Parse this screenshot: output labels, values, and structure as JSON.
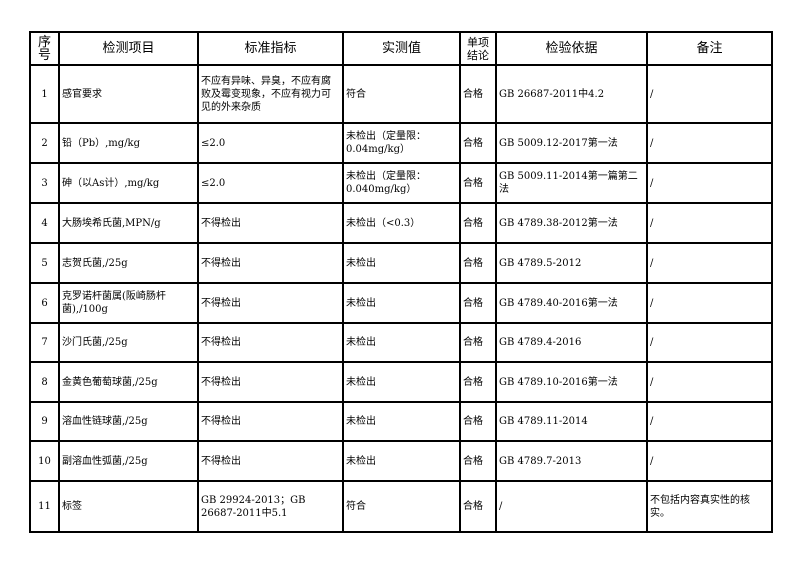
{
  "headers": [
    "序号",
    "检测项目",
    "标准指标",
    "实测值",
    "单项结论",
    "检验依据",
    "备注"
  ],
  "rows": [
    {
      "no": "1",
      "item": "感官要求",
      "standard": "不应有异味、异臭，不应有腐败及霉变现象，不应有视力可见的外来杂质",
      "result": "符合",
      "conclusion": "合格",
      "basis": "GB 26687-2011中4.2",
      "note": "/"
    },
    {
      "no": "2",
      "item": "铅（Pb）,mg/kg",
      "standard": "≤2.0",
      "result": "未检出（定量限：0.04mg/kg）",
      "conclusion": "合格",
      "basis": "GB 5009.12-2017第一法",
      "note": "/"
    },
    {
      "no": "3",
      "item": "砷（以As计）,mg/kg",
      "standard": "≤2.0",
      "result": "未检出（定量限：0.040mg/kg）",
      "conclusion": "合格",
      "basis": "GB 5009.11-2014第一篇第二法",
      "note": "/"
    },
    {
      "no": "4",
      "item": "大肠埃希氏菌,MPN/g",
      "standard": "不得检出",
      "result": "未检出（<0.3）",
      "conclusion": "合格",
      "basis": "GB 4789.38-2012第一法",
      "note": "/"
    },
    {
      "no": "5",
      "item": "志贺氏菌,/25g",
      "standard": "不得检出",
      "result": "未检出",
      "conclusion": "合格",
      "basis": "GB 4789.5-2012",
      "note": "/"
    },
    {
      "no": "6",
      "item": "克罗诺杆菌属(阪崎肠杆菌),/100g",
      "standard": "不得检出",
      "result": "未检出",
      "conclusion": "合格",
      "basis": "GB 4789.40-2016第一法",
      "note": "/"
    },
    {
      "no": "7",
      "item": "沙门氏菌,/25g",
      "standard": "不得检出",
      "result": "未检出",
      "conclusion": "合格",
      "basis": "GB 4789.4-2016",
      "note": "/"
    },
    {
      "no": "8",
      "item": "金黄色葡萄球菌,/25g",
      "standard": "不得检出",
      "result": "未检出",
      "conclusion": "合格",
      "basis": "GB 4789.10-2016第一法",
      "note": "/"
    },
    {
      "no": "9",
      "item": "溶血性链球菌,/25g",
      "standard": "不得检出",
      "result": "未检出",
      "conclusion": "合格",
      "basis": "GB 4789.11-2014",
      "note": "/"
    },
    {
      "no": "10",
      "item": "副溶血性弧菌,/25g",
      "standard": "不得检出",
      "result": "未检出",
      "conclusion": "合格",
      "basis": "GB 4789.7-2013",
      "note": "/"
    },
    {
      "no": "11",
      "item": "标签",
      "standard": "GB 29924-2013；GB 26687-2011中5.1",
      "result": "符合",
      "conclusion": "合格",
      "basis": "/",
      "note": "不包括内容真实性的核实。"
    }
  ]
}
